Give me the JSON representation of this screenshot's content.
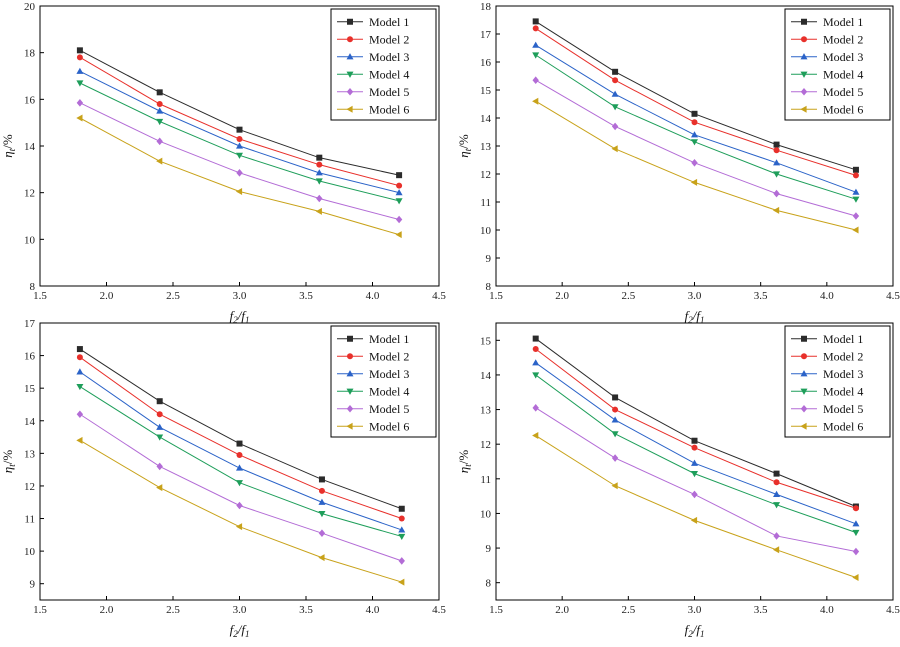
{
  "figure": {
    "title": ""
  },
  "chart_data": [
    {
      "id": "top-left",
      "type": "line",
      "title": "",
      "xlabel_main": "f",
      "xlabel_sub": "2",
      "xlabel_sep": "/",
      "xlabel_main2": "f",
      "xlabel_sub2": "1",
      "ylabel_main": "η",
      "ylabel_sub": "t",
      "ylabel_unit": "/%",
      "xlim": [
        1.5,
        4.5
      ],
      "ylim": [
        8,
        20
      ],
      "xticks": [
        "1.5",
        "2.0",
        "2.5",
        "3.0",
        "3.5",
        "4.0",
        "4.5"
      ],
      "yticks": [
        "8",
        "10",
        "12",
        "14",
        "16",
        "18",
        "20"
      ],
      "legend_position": "top-right",
      "x": [
        1.8,
        2.4,
        3.0,
        3.6,
        4.2
      ],
      "series": [
        {
          "name": "Model 1",
          "color": "#2b2b2b",
          "marker": "square",
          "values": [
            18.1,
            16.3,
            14.7,
            13.5,
            12.75
          ]
        },
        {
          "name": "Model 2",
          "color": "#e8302b",
          "marker": "circle",
          "values": [
            17.8,
            15.8,
            14.3,
            13.2,
            12.3
          ]
        },
        {
          "name": "Model 3",
          "color": "#2b63c8",
          "marker": "triangle-up",
          "values": [
            17.2,
            15.5,
            14.0,
            12.85,
            12.0
          ]
        },
        {
          "name": "Model 4",
          "color": "#1e9e5a",
          "marker": "triangle-down",
          "values": [
            16.7,
            15.05,
            13.6,
            12.5,
            11.65
          ]
        },
        {
          "name": "Model 5",
          "color": "#b36cd6",
          "marker": "diamond",
          "values": [
            15.85,
            14.2,
            12.85,
            11.75,
            10.85
          ]
        },
        {
          "name": "Model 6",
          "color": "#c8a21a",
          "marker": "triangle-left",
          "values": [
            15.2,
            13.35,
            12.05,
            11.2,
            10.2
          ]
        }
      ]
    },
    {
      "id": "top-right",
      "type": "line",
      "title": "",
      "xlabel_main": "f",
      "xlabel_sub": "2",
      "xlabel_sep": "/",
      "xlabel_main2": "f",
      "xlabel_sub2": "1",
      "ylabel_main": "η",
      "ylabel_sub": "t",
      "ylabel_unit": "/%",
      "xlim": [
        1.5,
        4.5
      ],
      "ylim": [
        8,
        18
      ],
      "xticks": [
        "1.5",
        "2.0",
        "2.5",
        "3.0",
        "3.5",
        "4.0",
        "4.5"
      ],
      "yticks": [
        "8",
        "9",
        "10",
        "11",
        "12",
        "13",
        "14",
        "15",
        "16",
        "17",
        "18"
      ],
      "legend_position": "top-right",
      "x": [
        1.8,
        2.4,
        3.0,
        3.62,
        4.22
      ],
      "series": [
        {
          "name": "Model 1",
          "color": "#2b2b2b",
          "marker": "square",
          "values": [
            17.45,
            15.65,
            14.15,
            13.05,
            12.15
          ]
        },
        {
          "name": "Model 2",
          "color": "#e8302b",
          "marker": "circle",
          "values": [
            17.2,
            15.35,
            13.85,
            12.85,
            11.95
          ]
        },
        {
          "name": "Model 3",
          "color": "#2b63c8",
          "marker": "triangle-up",
          "values": [
            16.6,
            14.85,
            13.4,
            12.4,
            11.35
          ]
        },
        {
          "name": "Model 4",
          "color": "#1e9e5a",
          "marker": "triangle-down",
          "values": [
            16.25,
            14.4,
            13.15,
            12.0,
            11.1
          ]
        },
        {
          "name": "Model 5",
          "color": "#b36cd6",
          "marker": "diamond",
          "values": [
            15.35,
            13.7,
            12.4,
            11.3,
            10.5
          ]
        },
        {
          "name": "Model 6",
          "color": "#c8a21a",
          "marker": "triangle-left",
          "values": [
            14.6,
            12.9,
            11.7,
            10.7,
            10.0
          ]
        }
      ]
    },
    {
      "id": "bottom-left",
      "type": "line",
      "title": "",
      "xlabel_main": "f",
      "xlabel_sub": "2",
      "xlabel_sep": "/",
      "xlabel_main2": "f",
      "xlabel_sub2": "1",
      "ylabel_main": "η",
      "ylabel_sub": "t",
      "ylabel_unit": "/%",
      "xlim": [
        1.5,
        4.5
      ],
      "ylim": [
        8.5,
        17
      ],
      "xticks": [
        "1.5",
        "2.0",
        "2.5",
        "3.0",
        "3.5",
        "4.0",
        "4.5"
      ],
      "yticks": [
        "9",
        "10",
        "11",
        "12",
        "13",
        "14",
        "15",
        "16",
        "17"
      ],
      "legend_position": "top-right",
      "x": [
        1.8,
        2.4,
        3.0,
        3.62,
        4.22
      ],
      "series": [
        {
          "name": "Model 1",
          "color": "#2b2b2b",
          "marker": "square",
          "values": [
            16.2,
            14.6,
            13.3,
            12.2,
            11.3
          ]
        },
        {
          "name": "Model 2",
          "color": "#e8302b",
          "marker": "circle",
          "values": [
            15.95,
            14.2,
            12.95,
            11.85,
            11.0
          ]
        },
        {
          "name": "Model 3",
          "color": "#2b63c8",
          "marker": "triangle-up",
          "values": [
            15.5,
            13.8,
            12.55,
            11.5,
            10.65
          ]
        },
        {
          "name": "Model 4",
          "color": "#1e9e5a",
          "marker": "triangle-down",
          "values": [
            15.05,
            13.5,
            12.1,
            11.15,
            10.45
          ]
        },
        {
          "name": "Model 5",
          "color": "#b36cd6",
          "marker": "diamond",
          "values": [
            14.2,
            12.6,
            11.4,
            10.55,
            9.7
          ]
        },
        {
          "name": "Model 6",
          "color": "#c8a21a",
          "marker": "triangle-left",
          "values": [
            13.4,
            11.95,
            10.75,
            9.8,
            9.05
          ]
        }
      ]
    },
    {
      "id": "bottom-right",
      "type": "line",
      "title": "",
      "xlabel_main": "f",
      "xlabel_sub": "2",
      "xlabel_sep": "/",
      "xlabel_main2": "f",
      "xlabel_sub2": "1",
      "ylabel_main": "η",
      "ylabel_sub": "t",
      "ylabel_unit": "/%",
      "xlim": [
        1.5,
        4.5
      ],
      "ylim": [
        7.5,
        15.5
      ],
      "xticks": [
        "1.5",
        "2.0",
        "2.5",
        "3.0",
        "3.5",
        "4.0",
        "4.5"
      ],
      "yticks": [
        "8",
        "9",
        "10",
        "11",
        "12",
        "13",
        "14",
        "15"
      ],
      "legend_position": "top-right",
      "x": [
        1.8,
        2.4,
        3.0,
        3.62,
        4.22
      ],
      "series": [
        {
          "name": "Model 1",
          "color": "#2b2b2b",
          "marker": "square",
          "values": [
            15.05,
            13.35,
            12.1,
            11.15,
            10.2
          ]
        },
        {
          "name": "Model 2",
          "color": "#e8302b",
          "marker": "circle",
          "values": [
            14.75,
            13.0,
            11.9,
            10.9,
            10.15
          ]
        },
        {
          "name": "Model 3",
          "color": "#2b63c8",
          "marker": "triangle-up",
          "values": [
            14.35,
            12.7,
            11.45,
            10.55,
            9.7
          ]
        },
        {
          "name": "Model 4",
          "color": "#1e9e5a",
          "marker": "triangle-down",
          "values": [
            14.0,
            12.3,
            11.15,
            10.25,
            9.45
          ]
        },
        {
          "name": "Model 5",
          "color": "#b36cd6",
          "marker": "diamond",
          "values": [
            13.05,
            11.6,
            10.55,
            9.35,
            8.9
          ]
        },
        {
          "name": "Model 6",
          "color": "#c8a21a",
          "marker": "triangle-left",
          "values": [
            12.25,
            10.8,
            9.8,
            8.95,
            8.15
          ]
        }
      ]
    }
  ]
}
